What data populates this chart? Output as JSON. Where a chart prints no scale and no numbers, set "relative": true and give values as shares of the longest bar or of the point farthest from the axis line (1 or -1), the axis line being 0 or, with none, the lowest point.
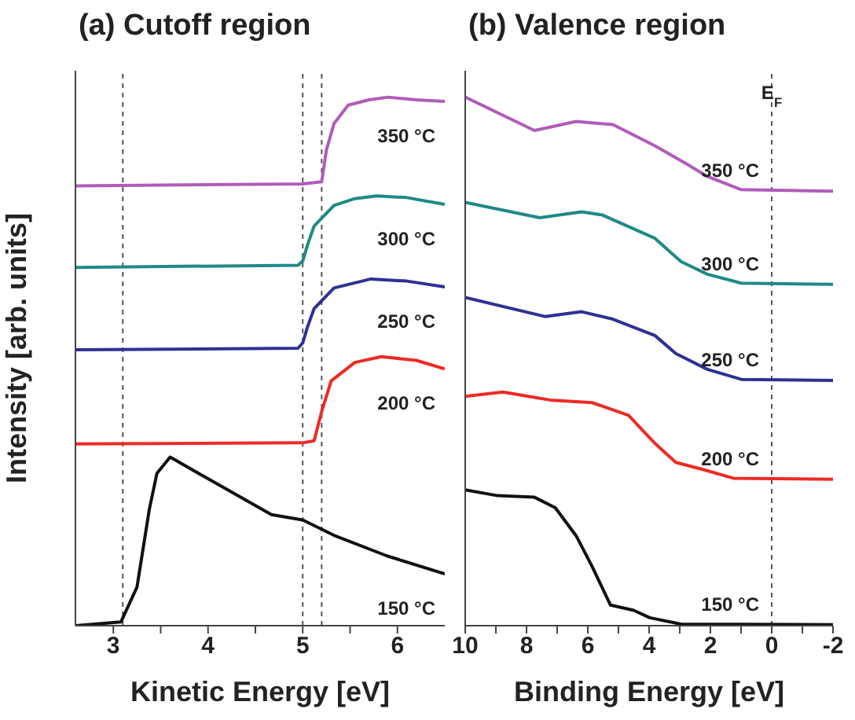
{
  "chart_data": [
    {
      "type": "line",
      "title": "(a) Cutoff region",
      "xlabel": "Kinetic Energy [eV]",
      "ylabel": "Intensity [arb. units]",
      "relative": true,
      "xlim": [
        2.6,
        6.5
      ],
      "xticks": [
        3,
        {
          "value": 3.5,
          "label": null
        },
        4,
        {
          "value": 4.5,
          "label": null
        },
        5,
        {
          "value": 5.5,
          "label": null
        },
        6
      ],
      "series": [
        {
          "name": "150 °C",
          "color": "#111111",
          "x": [
            2.6,
            3.08,
            3.25,
            3.38,
            3.46,
            3.6,
            4.0,
            4.67,
            5.0,
            5.33,
            5.89,
            6.5
          ],
          "values": [
            0.0,
            0.007,
            0.073,
            0.22,
            0.288,
            0.319,
            0.278,
            0.21,
            0.2,
            0.171,
            0.132,
            0.098
          ]
        },
        {
          "name": "200 °C",
          "color": "#ee2a24",
          "x": [
            2.6,
            5.0,
            5.12,
            5.2,
            5.3,
            5.55,
            5.83,
            6.2,
            6.5
          ],
          "values": [
            0.344,
            0.346,
            0.35,
            0.405,
            0.463,
            0.498,
            0.509,
            0.502,
            0.486
          ]
        },
        {
          "name": "250 °C",
          "color": "#2e3192",
          "x": [
            2.6,
            4.95,
            5.0,
            5.05,
            5.12,
            5.33,
            5.72,
            6.1,
            6.5
          ],
          "values": [
            0.522,
            0.525,
            0.535,
            0.565,
            0.6,
            0.639,
            0.656,
            0.652,
            0.641
          ]
        },
        {
          "name": "300 °C",
          "color": "#1f8a85",
          "x": [
            2.6,
            4.95,
            5.0,
            5.05,
            5.12,
            5.33,
            5.55,
            5.78,
            6.1,
            6.5
          ],
          "values": [
            0.678,
            0.682,
            0.69,
            0.72,
            0.756,
            0.795,
            0.808,
            0.813,
            0.81,
            0.797
          ]
        },
        {
          "name": "350 °C",
          "color": "#b05cb8",
          "x": [
            2.6,
            5.0,
            5.2,
            5.25,
            5.33,
            5.48,
            5.7,
            5.9,
            6.2,
            6.5
          ],
          "values": [
            0.832,
            0.836,
            0.84,
            0.9,
            0.95,
            0.985,
            0.995,
            1.0,
            0.995,
            0.992
          ]
        }
      ],
      "ref_lines": [
        {
          "axis": "x",
          "value": 3.1,
          "color": "#555555",
          "line_style": "dashed"
        },
        {
          "axis": "x",
          "value": 5.0,
          "color": "#555555",
          "line_style": "dashed"
        },
        {
          "axis": "x",
          "value": 5.2,
          "color": "#555555",
          "line_style": "dashed"
        }
      ]
    },
    {
      "type": "line",
      "title": "(b) Valence region",
      "xlabel": "Binding Energy [eV]",
      "relative": true,
      "xlim": [
        10,
        -2
      ],
      "xticks": [
        10,
        {
          "value": 9,
          "label": null
        },
        8,
        {
          "value": 7,
          "label": null
        },
        6,
        {
          "value": 5,
          "label": null
        },
        4,
        {
          "value": 3,
          "label": null
        },
        2,
        {
          "value": 1,
          "label": null
        },
        0,
        {
          "value": -1,
          "label": null
        },
        -2
      ],
      "series": [
        {
          "name": "150 °C",
          "color": "#111111",
          "x": [
            10,
            8.94,
            7.74,
            7.06,
            6.38,
            5.86,
            5.26,
            4.5,
            3.98,
            2.96,
            -2
          ],
          "values": [
            0.257,
            0.246,
            0.243,
            0.223,
            0.17,
            0.112,
            0.039,
            0.029,
            0.015,
            0.003,
            0.002
          ]
        },
        {
          "name": "200 °C",
          "color": "#ee2a24",
          "x": [
            10,
            8.77,
            7.23,
            5.86,
            4.67,
            3.81,
            3.13,
            2.27,
            1.25,
            -2
          ],
          "values": [
            0.434,
            0.442,
            0.427,
            0.422,
            0.398,
            0.345,
            0.309,
            0.296,
            0.279,
            0.277
          ]
        },
        {
          "name": "250 °C",
          "color": "#2e3192",
          "x": [
            10,
            7.4,
            6.2,
            5.18,
            3.81,
            3.13,
            2.1,
            0.99,
            -2
          ],
          "values": [
            0.621,
            0.585,
            0.594,
            0.58,
            0.549,
            0.515,
            0.485,
            0.466,
            0.464
          ]
        },
        {
          "name": "300 °C",
          "color": "#1f8a85",
          "x": [
            10,
            7.57,
            6.2,
            5.52,
            3.81,
            2.96,
            2.1,
            0.99,
            -2
          ],
          "values": [
            0.801,
            0.772,
            0.783,
            0.777,
            0.733,
            0.689,
            0.665,
            0.648,
            0.646
          ]
        },
        {
          "name": "350 °C",
          "color": "#b05cb8",
          "x": [
            10,
            7.74,
            6.38,
            5.18,
            3.81,
            2.79,
            2.1,
            0.99,
            -2
          ],
          "values": [
            1.0,
            0.937,
            0.954,
            0.948,
            0.908,
            0.874,
            0.85,
            0.825,
            0.822
          ]
        }
      ],
      "ref_lines": [
        {
          "axis": "x",
          "value": 0,
          "label": "E$_{F}$",
          "color": "#555555",
          "line_style": "dashed"
        }
      ]
    }
  ]
}
